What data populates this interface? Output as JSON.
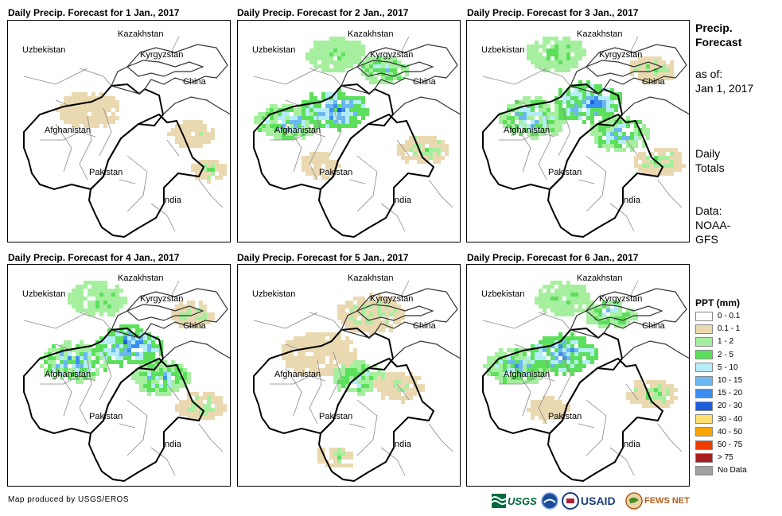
{
  "panels": [
    {
      "title": "Daily Precip. Forecast for 1 Jan., 2017",
      "intensity": 0
    },
    {
      "title": "Daily Precip. Forecast for 2 Jan., 2017",
      "intensity": 2
    },
    {
      "title": "Daily Precip. Forecast for 3 Jan., 2017",
      "intensity": 3
    },
    {
      "title": "Daily Precip. Forecast for 4 Jan., 2017",
      "intensity": 3
    },
    {
      "title": "Daily Precip. Forecast for 5 Jan., 2017",
      "intensity": 1
    },
    {
      "title": "Daily Precip. Forecast for 6 Jan., 2017",
      "intensity": 2
    }
  ],
  "map_labels": {
    "kazakhstan": "Kazakhstan",
    "uzbekistan": "Uzbekistan",
    "kyrgyzstan": "Kyrgyzstan",
    "china": "China",
    "afghanistan": "Afghanistan",
    "pakistan": "Pakistan",
    "india": "India"
  },
  "sidebar": {
    "heading_line1": "Precip.",
    "heading_line2": "Forecast",
    "asof_label": "as of:",
    "asof_date": "Jan 1, 2017",
    "daily_line1": "Daily",
    "daily_line2": "Totals",
    "data_line1": "Data:",
    "data_line2": "NOAA-",
    "data_line3": "GFS"
  },
  "legend": {
    "title": "PPT (mm)",
    "items": [
      {
        "label": "0 - 0.1",
        "color": "#ffffff"
      },
      {
        "label": "0.1 - 1",
        "color": "#ead9b0"
      },
      {
        "label": "1 - 2",
        "color": "#a6ef9f"
      },
      {
        "label": "2 - 5",
        "color": "#5ce05c"
      },
      {
        "label": "5 - 10",
        "color": "#b4ecf7"
      },
      {
        "label": "10 - 15",
        "color": "#6bb7f1"
      },
      {
        "label": "15 - 20",
        "color": "#3b8ff0"
      },
      {
        "label": "20 - 30",
        "color": "#1c5ddb"
      },
      {
        "label": "30 - 40",
        "color": "#fcdf6d"
      },
      {
        "label": "40 - 50",
        "color": "#f7a400"
      },
      {
        "label": "50 - 75",
        "color": "#f03c00"
      },
      {
        "label": "> 75",
        "color": "#a81e1e"
      },
      {
        "label": "No Data",
        "color": "#a0a0a0"
      }
    ]
  },
  "footer": {
    "credit": "Map produced by USGS/EROS",
    "logo_usgs": "USGS",
    "logo_usaid": "USAID",
    "logo_fewsnet": "FEWS NET"
  }
}
